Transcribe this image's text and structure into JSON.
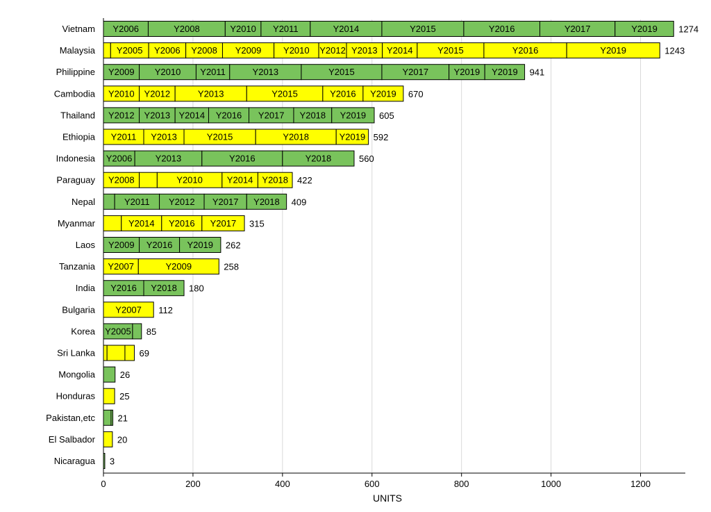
{
  "chart_data": {
    "type": "bar",
    "orientation": "horizontal",
    "stacked": true,
    "xlabel": "UNITS",
    "xlim": [
      0,
      1300
    ],
    "xticks": [
      0,
      200,
      400,
      600,
      800,
      1000,
      1200
    ],
    "grid": "vertical",
    "colors": {
      "green": "#79c35c",
      "yellow": "#ffff00"
    },
    "categories": [
      {
        "name": "Vietnam",
        "total": 1274,
        "color": "green",
        "segments": [
          {
            "label": "Y2006",
            "value": 100
          },
          {
            "label": "Y2008",
            "value": 172
          },
          {
            "label": "Y2010",
            "value": 80
          },
          {
            "label": "Y2011",
            "value": 110
          },
          {
            "label": "Y2014",
            "value": 160
          },
          {
            "label": "Y2015",
            "value": 183
          },
          {
            "label": "Y2016",
            "value": 170
          },
          {
            "label": "Y2017",
            "value": 168
          },
          {
            "label": "Y2019",
            "value": 131
          }
        ]
      },
      {
        "name": "Malaysia",
        "total": 1243,
        "color": "yellow",
        "segments": [
          {
            "label": "",
            "value": 16
          },
          {
            "label": "Y2005",
            "value": 85
          },
          {
            "label": "Y2006",
            "value": 83
          },
          {
            "label": "Y2008",
            "value": 82
          },
          {
            "label": "Y2009",
            "value": 115
          },
          {
            "label": "Y2010",
            "value": 100
          },
          {
            "label": "Y2012",
            "value": 62
          },
          {
            "label": "Y2013",
            "value": 80
          },
          {
            "label": "Y2014",
            "value": 78
          },
          {
            "label": "Y2015",
            "value": 149
          },
          {
            "label": "Y2016",
            "value": 185
          },
          {
            "label": "Y2019",
            "value": 208
          }
        ]
      },
      {
        "name": "Philippine",
        "total": 941,
        "color": "green",
        "segments": [
          {
            "label": "Y2009",
            "value": 80
          },
          {
            "label": "Y2010",
            "value": 127
          },
          {
            "label": "Y2011",
            "value": 75
          },
          {
            "label": "Y2013",
            "value": 160
          },
          {
            "label": "Y2015",
            "value": 180
          },
          {
            "label": "Y2017",
            "value": 150
          },
          {
            "label": "Y2019",
            "value": 80
          },
          {
            "label": "Y2019",
            "value": 89
          }
        ]
      },
      {
        "name": "Cambodia",
        "total": 670,
        "color": "yellow",
        "segments": [
          {
            "label": "Y2010",
            "value": 80
          },
          {
            "label": "Y2012",
            "value": 80
          },
          {
            "label": "Y2013",
            "value": 160
          },
          {
            "label": "Y2015",
            "value": 170
          },
          {
            "label": "Y2016",
            "value": 90
          },
          {
            "label": "Y2019",
            "value": 90
          }
        ]
      },
      {
        "name": "Thailand",
        "total": 605,
        "color": "green",
        "segments": [
          {
            "label": "Y2012",
            "value": 80
          },
          {
            "label": "Y2013",
            "value": 80
          },
          {
            "label": "Y2014",
            "value": 75
          },
          {
            "label": "Y2016",
            "value": 90
          },
          {
            "label": "Y2017",
            "value": 100
          },
          {
            "label": "Y2018",
            "value": 85
          },
          {
            "label": "Y2019",
            "value": 95
          }
        ]
      },
      {
        "name": "Ethiopia",
        "total": 592,
        "color": "yellow",
        "segments": [
          {
            "label": "Y2011",
            "value": 90
          },
          {
            "label": "Y2013",
            "value": 90
          },
          {
            "label": "Y2015",
            "value": 160
          },
          {
            "label": "Y2018",
            "value": 180
          },
          {
            "label": "Y2019",
            "value": 72
          }
        ]
      },
      {
        "name": "Indonesia",
        "total": 560,
        "color": "green",
        "segments": [
          {
            "label": "Y2006",
            "value": 70
          },
          {
            "label": "Y2013",
            "value": 150
          },
          {
            "label": "Y2016",
            "value": 180
          },
          {
            "label": "Y2018",
            "value": 160
          }
        ]
      },
      {
        "name": "Paraguay",
        "total": 422,
        "color": "yellow",
        "segments": [
          {
            "label": "Y2008",
            "value": 80
          },
          {
            "label": "",
            "value": 40
          },
          {
            "label": "Y2010",
            "value": 145
          },
          {
            "label": "Y2014",
            "value": 80
          },
          {
            "label": "Y2018",
            "value": 77
          }
        ]
      },
      {
        "name": "Nepal",
        "total": 409,
        "color": "green",
        "segments": [
          {
            "label": "",
            "value": 25
          },
          {
            "label": "Y2011",
            "value": 100
          },
          {
            "label": "Y2012",
            "value": 100
          },
          {
            "label": "Y2017",
            "value": 95
          },
          {
            "label": "Y2018",
            "value": 89
          }
        ]
      },
      {
        "name": "Myanmar",
        "total": 315,
        "color": "yellow",
        "segments": [
          {
            "label": "",
            "value": 40
          },
          {
            "label": "Y2014",
            "value": 90
          },
          {
            "label": "Y2016",
            "value": 90
          },
          {
            "label": "Y2017",
            "value": 95
          }
        ]
      },
      {
        "name": "Laos",
        "total": 262,
        "color": "green",
        "segments": [
          {
            "label": "Y2009",
            "value": 80
          },
          {
            "label": "Y2016",
            "value": 90
          },
          {
            "label": "Y2019",
            "value": 92
          }
        ]
      },
      {
        "name": "Tanzania",
        "total": 258,
        "color": "yellow",
        "segments": [
          {
            "label": "Y2007",
            "value": 78
          },
          {
            "label": "Y2009",
            "value": 180
          }
        ]
      },
      {
        "name": "India",
        "total": 180,
        "color": "green",
        "segments": [
          {
            "label": "Y2016",
            "value": 90
          },
          {
            "label": "Y2018",
            "value": 90
          }
        ]
      },
      {
        "name": "Bulgaria",
        "total": 112,
        "color": "yellow",
        "segments": [
          {
            "label": "Y2007",
            "value": 112
          }
        ]
      },
      {
        "name": "Korea",
        "total": 85,
        "color": "green",
        "segments": [
          {
            "label": "Y2005",
            "value": 65
          },
          {
            "label": "",
            "value": 20
          }
        ]
      },
      {
        "name": "Sri Lanka",
        "total": 69,
        "color": "yellow",
        "segments": [
          {
            "label": "",
            "value": 8
          },
          {
            "label": "",
            "value": 40
          },
          {
            "label": "",
            "value": 21
          }
        ]
      },
      {
        "name": "Mongolia",
        "total": 26,
        "color": "green",
        "segments": [
          {
            "label": "",
            "value": 26
          }
        ]
      },
      {
        "name": "Honduras",
        "total": 25,
        "color": "yellow",
        "segments": [
          {
            "label": "",
            "value": 25
          }
        ]
      },
      {
        "name": "Pakistan,etc",
        "total": 21,
        "color": "green",
        "segments": [
          {
            "label": "",
            "value": 17
          },
          {
            "label": "",
            "value": 4
          }
        ]
      },
      {
        "name": "El Salbador",
        "total": 20,
        "color": "yellow",
        "segments": [
          {
            "label": "",
            "value": 20
          }
        ]
      },
      {
        "name": "Nicaragua",
        "total": 3,
        "color": "green",
        "segments": [
          {
            "label": "",
            "value": 3
          }
        ]
      }
    ]
  }
}
